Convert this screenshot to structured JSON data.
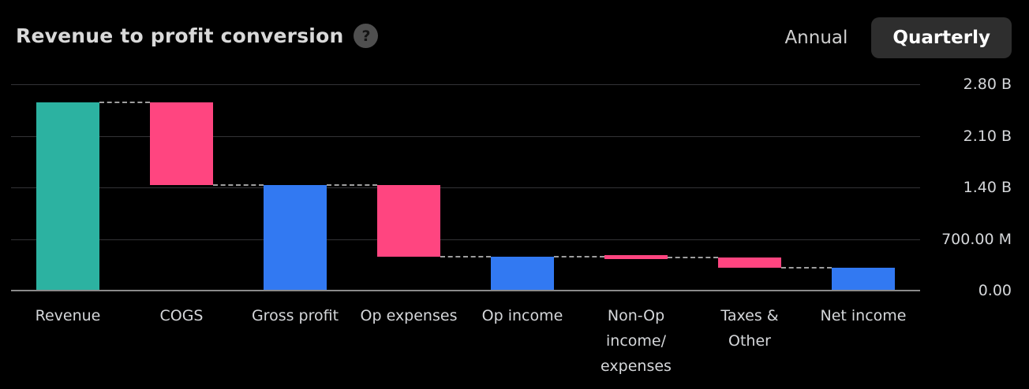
{
  "header": {
    "title": "Revenue to profit conversion",
    "help_glyph": "?",
    "toggle": {
      "options": [
        {
          "label": "Annual",
          "active": false
        },
        {
          "label": "Quarterly",
          "active": true
        }
      ]
    }
  },
  "chart_data": {
    "type": "bar",
    "subtype": "waterfall",
    "title": "Revenue to profit conversion",
    "period": "Quarterly",
    "unit_scale": "USD billions",
    "ylim": [
      0,
      2.8
    ],
    "grid": true,
    "yticks": [
      {
        "label": "2.80 B",
        "value": 2.8
      },
      {
        "label": "2.10 B",
        "value": 2.1
      },
      {
        "label": "1.40 B",
        "value": 1.4
      },
      {
        "label": "700.00 M",
        "value": 0.7
      },
      {
        "label": "0.00",
        "value": 0
      }
    ],
    "bars": [
      {
        "label": "Revenue",
        "label_lines": [
          "Revenue"
        ],
        "start": 0,
        "end": 2.55,
        "delta": 2.55,
        "role": "total"
      },
      {
        "label": "COGS",
        "label_lines": [
          "COGS"
        ],
        "start": 2.55,
        "end": 1.43,
        "delta": -1.12,
        "role": "decrease"
      },
      {
        "label": "Gross profit",
        "label_lines": [
          "Gross profit"
        ],
        "start": 0,
        "end": 1.43,
        "delta": 1.43,
        "role": "subtotal"
      },
      {
        "label": "Op expenses",
        "label_lines": [
          "Op expenses"
        ],
        "start": 1.43,
        "end": 0.46,
        "delta": -0.97,
        "role": "decrease"
      },
      {
        "label": "Op income",
        "label_lines": [
          "Op income"
        ],
        "start": 0,
        "end": 0.46,
        "delta": 0.46,
        "role": "subtotal"
      },
      {
        "label": "Non-Op income/expenses",
        "label_lines": [
          "Non-Op",
          "income/",
          "expenses"
        ],
        "start": 0.46,
        "end": 0.45,
        "delta": -0.01,
        "role": "decrease"
      },
      {
        "label": "Taxes & Other",
        "label_lines": [
          "Taxes &",
          "Other"
        ],
        "start": 0.45,
        "end": 0.31,
        "delta": -0.14,
        "role": "decrease"
      },
      {
        "label": "Net income",
        "label_lines": [
          "Net income"
        ],
        "start": 0,
        "end": 0.31,
        "delta": 0.31,
        "role": "subtotal"
      }
    ],
    "colors": {
      "total": "#2cb2a1",
      "subtotal": "#3279f2",
      "increase": "#3279f2",
      "decrease": "#ff4580",
      "grid": "#333336",
      "baseline": "#8a8a8a",
      "connector": "#9e9e9e",
      "background": "#000000",
      "text": "#d5d7da"
    },
    "legend": null
  }
}
